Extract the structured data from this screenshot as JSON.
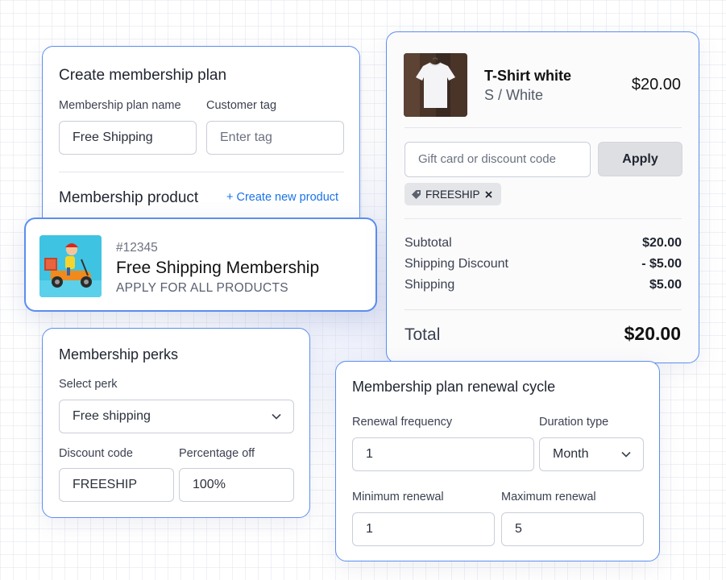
{
  "plan": {
    "title": "Create membership plan",
    "name_label": "Membership plan name",
    "name_value": "Free Shipping",
    "tag_label": "Customer tag",
    "tag_placeholder": "Enter tag",
    "product_heading": "Membership product",
    "create_link": "+ Create new product"
  },
  "product": {
    "sku": "#12345",
    "name": "Free Shipping Membership",
    "subtitle": "APPLY FOR ALL PRODUCTS"
  },
  "perks": {
    "title": "Membership perks",
    "select_label": "Select perk",
    "select_value": "Free shipping",
    "code_label": "Discount code",
    "code_value": "FREESHIP",
    "pct_label": "Percentage off",
    "pct_value": "100%"
  },
  "checkout": {
    "item_name": "T-Shirt white",
    "item_variant": "S / White",
    "item_price": "$20.00",
    "discount_placeholder": "Gift card or discount code",
    "apply_label": "Apply",
    "applied_code": "FREESHIP",
    "rows": [
      {
        "label": "Subtotal",
        "value": "$20.00"
      },
      {
        "label": "Shipping Discount",
        "value": "- $5.00"
      },
      {
        "label": "Shipping",
        "value": "$5.00"
      }
    ],
    "total_label": "Total",
    "total_value": "$20.00"
  },
  "renewal": {
    "title": "Membership plan renewal cycle",
    "freq_label": "Renewal frequency",
    "freq_value": "1",
    "duration_label": "Duration type",
    "duration_value": "Month",
    "min_label": "Minimum renewal",
    "min_value": "1",
    "max_label": "Maximum renewal",
    "max_value": "5"
  },
  "colors": {
    "accent": "#1a73e8",
    "card_border": "#5b8ef0"
  },
  "icons": [
    "chevron-down-icon",
    "tag-icon",
    "close-icon",
    "delivery-scooter-image",
    "tshirt-image"
  ]
}
